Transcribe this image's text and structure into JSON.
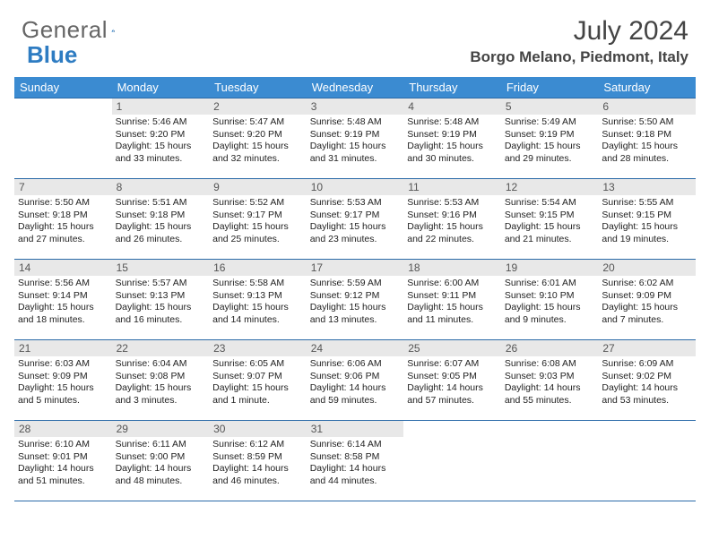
{
  "brand": {
    "part1": "General",
    "part2": "Blue"
  },
  "title": "July 2024",
  "location": "Borgo Melano, Piedmont, Italy",
  "colors": {
    "header_bg": "#3b8bd1",
    "header_text": "#ffffff",
    "daynum_bg": "#e8e8e8",
    "border": "#2a6aa8",
    "logo_blue": "#2e7cc2",
    "text": "#222222"
  },
  "weekdays": [
    "Sunday",
    "Monday",
    "Tuesday",
    "Wednesday",
    "Thursday",
    "Friday",
    "Saturday"
  ],
  "weeks": [
    [
      {
        "n": "",
        "sr": "",
        "ss": "",
        "dl": ""
      },
      {
        "n": "1",
        "sr": "Sunrise: 5:46 AM",
        "ss": "Sunset: 9:20 PM",
        "dl": "Daylight: 15 hours and 33 minutes."
      },
      {
        "n": "2",
        "sr": "Sunrise: 5:47 AM",
        "ss": "Sunset: 9:20 PM",
        "dl": "Daylight: 15 hours and 32 minutes."
      },
      {
        "n": "3",
        "sr": "Sunrise: 5:48 AM",
        "ss": "Sunset: 9:19 PM",
        "dl": "Daylight: 15 hours and 31 minutes."
      },
      {
        "n": "4",
        "sr": "Sunrise: 5:48 AM",
        "ss": "Sunset: 9:19 PM",
        "dl": "Daylight: 15 hours and 30 minutes."
      },
      {
        "n": "5",
        "sr": "Sunrise: 5:49 AM",
        "ss": "Sunset: 9:19 PM",
        "dl": "Daylight: 15 hours and 29 minutes."
      },
      {
        "n": "6",
        "sr": "Sunrise: 5:50 AM",
        "ss": "Sunset: 9:18 PM",
        "dl": "Daylight: 15 hours and 28 minutes."
      }
    ],
    [
      {
        "n": "7",
        "sr": "Sunrise: 5:50 AM",
        "ss": "Sunset: 9:18 PM",
        "dl": "Daylight: 15 hours and 27 minutes."
      },
      {
        "n": "8",
        "sr": "Sunrise: 5:51 AM",
        "ss": "Sunset: 9:18 PM",
        "dl": "Daylight: 15 hours and 26 minutes."
      },
      {
        "n": "9",
        "sr": "Sunrise: 5:52 AM",
        "ss": "Sunset: 9:17 PM",
        "dl": "Daylight: 15 hours and 25 minutes."
      },
      {
        "n": "10",
        "sr": "Sunrise: 5:53 AM",
        "ss": "Sunset: 9:17 PM",
        "dl": "Daylight: 15 hours and 23 minutes."
      },
      {
        "n": "11",
        "sr": "Sunrise: 5:53 AM",
        "ss": "Sunset: 9:16 PM",
        "dl": "Daylight: 15 hours and 22 minutes."
      },
      {
        "n": "12",
        "sr": "Sunrise: 5:54 AM",
        "ss": "Sunset: 9:15 PM",
        "dl": "Daylight: 15 hours and 21 minutes."
      },
      {
        "n": "13",
        "sr": "Sunrise: 5:55 AM",
        "ss": "Sunset: 9:15 PM",
        "dl": "Daylight: 15 hours and 19 minutes."
      }
    ],
    [
      {
        "n": "14",
        "sr": "Sunrise: 5:56 AM",
        "ss": "Sunset: 9:14 PM",
        "dl": "Daylight: 15 hours and 18 minutes."
      },
      {
        "n": "15",
        "sr": "Sunrise: 5:57 AM",
        "ss": "Sunset: 9:13 PM",
        "dl": "Daylight: 15 hours and 16 minutes."
      },
      {
        "n": "16",
        "sr": "Sunrise: 5:58 AM",
        "ss": "Sunset: 9:13 PM",
        "dl": "Daylight: 15 hours and 14 minutes."
      },
      {
        "n": "17",
        "sr": "Sunrise: 5:59 AM",
        "ss": "Sunset: 9:12 PM",
        "dl": "Daylight: 15 hours and 13 minutes."
      },
      {
        "n": "18",
        "sr": "Sunrise: 6:00 AM",
        "ss": "Sunset: 9:11 PM",
        "dl": "Daylight: 15 hours and 11 minutes."
      },
      {
        "n": "19",
        "sr": "Sunrise: 6:01 AM",
        "ss": "Sunset: 9:10 PM",
        "dl": "Daylight: 15 hours and 9 minutes."
      },
      {
        "n": "20",
        "sr": "Sunrise: 6:02 AM",
        "ss": "Sunset: 9:09 PM",
        "dl": "Daylight: 15 hours and 7 minutes."
      }
    ],
    [
      {
        "n": "21",
        "sr": "Sunrise: 6:03 AM",
        "ss": "Sunset: 9:09 PM",
        "dl": "Daylight: 15 hours and 5 minutes."
      },
      {
        "n": "22",
        "sr": "Sunrise: 6:04 AM",
        "ss": "Sunset: 9:08 PM",
        "dl": "Daylight: 15 hours and 3 minutes."
      },
      {
        "n": "23",
        "sr": "Sunrise: 6:05 AM",
        "ss": "Sunset: 9:07 PM",
        "dl": "Daylight: 15 hours and 1 minute."
      },
      {
        "n": "24",
        "sr": "Sunrise: 6:06 AM",
        "ss": "Sunset: 9:06 PM",
        "dl": "Daylight: 14 hours and 59 minutes."
      },
      {
        "n": "25",
        "sr": "Sunrise: 6:07 AM",
        "ss": "Sunset: 9:05 PM",
        "dl": "Daylight: 14 hours and 57 minutes."
      },
      {
        "n": "26",
        "sr": "Sunrise: 6:08 AM",
        "ss": "Sunset: 9:03 PM",
        "dl": "Daylight: 14 hours and 55 minutes."
      },
      {
        "n": "27",
        "sr": "Sunrise: 6:09 AM",
        "ss": "Sunset: 9:02 PM",
        "dl": "Daylight: 14 hours and 53 minutes."
      }
    ],
    [
      {
        "n": "28",
        "sr": "Sunrise: 6:10 AM",
        "ss": "Sunset: 9:01 PM",
        "dl": "Daylight: 14 hours and 51 minutes."
      },
      {
        "n": "29",
        "sr": "Sunrise: 6:11 AM",
        "ss": "Sunset: 9:00 PM",
        "dl": "Daylight: 14 hours and 48 minutes."
      },
      {
        "n": "30",
        "sr": "Sunrise: 6:12 AM",
        "ss": "Sunset: 8:59 PM",
        "dl": "Daylight: 14 hours and 46 minutes."
      },
      {
        "n": "31",
        "sr": "Sunrise: 6:14 AM",
        "ss": "Sunset: 8:58 PM",
        "dl": "Daylight: 14 hours and 44 minutes."
      },
      {
        "n": "",
        "sr": "",
        "ss": "",
        "dl": ""
      },
      {
        "n": "",
        "sr": "",
        "ss": "",
        "dl": ""
      },
      {
        "n": "",
        "sr": "",
        "ss": "",
        "dl": ""
      }
    ]
  ]
}
